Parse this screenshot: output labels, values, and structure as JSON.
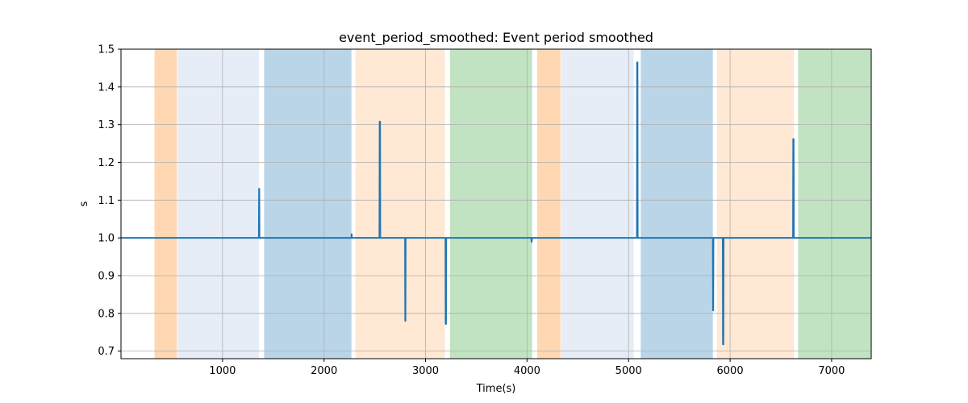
{
  "chart_data": {
    "type": "line",
    "title": "event_period_smoothed: Event period smoothed",
    "xlabel": "Time(s)",
    "ylabel": "s",
    "xlim": [
      0,
      7390
    ],
    "ylim": [
      0.68,
      1.5
    ],
    "grid": true,
    "xticks": [
      1000,
      2000,
      3000,
      4000,
      5000,
      6000,
      7000
    ],
    "yticks": [
      0.7,
      0.8,
      0.9,
      1.0,
      1.1,
      1.2,
      1.3,
      1.4,
      1.5
    ],
    "xtick_labels": [
      "1000",
      "2000",
      "3000",
      "4000",
      "5000",
      "6000",
      "7000"
    ],
    "ytick_labels": [
      "0.7",
      "0.8",
      "0.9",
      "1.0",
      "1.1",
      "1.2",
      "1.3",
      "1.4",
      "1.5"
    ],
    "bands": [
      {
        "start": 330,
        "end": 550,
        "color": "#ffd8b3"
      },
      {
        "start": 555,
        "end": 1360,
        "color": "#e6edf7"
      },
      {
        "start": 1410,
        "end": 2270,
        "color": "#bad5e8"
      },
      {
        "start": 2310,
        "end": 3190,
        "color": "#ffe8d4"
      },
      {
        "start": 3240,
        "end": 4050,
        "color": "#c2e3c2"
      },
      {
        "start": 4100,
        "end": 4330,
        "color": "#ffd8b3"
      },
      {
        "start": 4335,
        "end": 5050,
        "color": "#e6edf7"
      },
      {
        "start": 5120,
        "end": 5830,
        "color": "#bad5e8"
      },
      {
        "start": 5870,
        "end": 6630,
        "color": "#ffe8d4"
      },
      {
        "start": 6670,
        "end": 7390,
        "color": "#c2e3c2"
      }
    ],
    "series": [
      {
        "color": "#1f77b4",
        "x": [
          0,
          1358,
          1360,
          1362,
          1364,
          2270,
          2272,
          2274,
          2546,
          2548,
          2552,
          2554,
          2798,
          2800,
          2802,
          2804,
          3196,
          3198,
          3202,
          3204,
          4042,
          4044,
          4046,
          4048,
          5082,
          5084,
          5088,
          5090,
          5830,
          5832,
          5834,
          5836,
          5928,
          5930,
          5934,
          5936,
          6620,
          6622,
          6626,
          6628,
          7390
        ],
        "y": [
          1.0,
          1.0,
          1.13,
          1.13,
          1.0,
          1.0,
          1.01,
          1.0,
          1.0,
          1.308,
          1.308,
          1.0,
          1.0,
          0.78,
          0.78,
          1.0,
          1.0,
          0.772,
          0.772,
          1.0,
          1.0,
          0.99,
          0.99,
          1.0,
          1.0,
          1.465,
          1.465,
          1.0,
          1.0,
          0.808,
          0.808,
          1.0,
          1.0,
          0.718,
          0.718,
          1.0,
          1.0,
          1.262,
          1.262,
          1.0,
          1.0
        ]
      }
    ]
  }
}
